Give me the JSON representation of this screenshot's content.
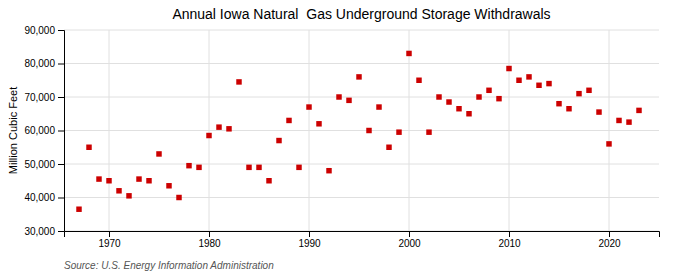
{
  "chart_data": {
    "type": "scatter",
    "title": "Annual Iowa Natural  Gas Underground Storage Withdrawals",
    "ylabel": "Million Cubic Feet",
    "annotation": "Source: U.S. Energy Information Administration",
    "x": [
      1967,
      1968,
      1969,
      1970,
      1971,
      1972,
      1973,
      1974,
      1975,
      1976,
      1977,
      1978,
      1979,
      1980,
      1981,
      1982,
      1983,
      1984,
      1985,
      1986,
      1987,
      1988,
      1989,
      1990,
      1991,
      1992,
      1993,
      1994,
      1995,
      1996,
      1997,
      1998,
      1999,
      2000,
      2001,
      2002,
      2003,
      2004,
      2005,
      2006,
      2007,
      2008,
      2009,
      2010,
      2011,
      2012,
      2013,
      2014,
      2015,
      2016,
      2017,
      2018,
      2019,
      2020,
      2021,
      2022,
      2023
    ],
    "values": [
      36500,
      55000,
      45500,
      45000,
      42000,
      40500,
      45500,
      45000,
      53000,
      43500,
      40000,
      49500,
      49000,
      58500,
      61000,
      60500,
      74500,
      49000,
      49000,
      45000,
      57000,
      63000,
      49000,
      67000,
      62000,
      48000,
      70000,
      69000,
      76000,
      60000,
      67000,
      55000,
      59500,
      83000,
      75000,
      59500,
      70000,
      68500,
      66500,
      65000,
      70000,
      72000,
      69500,
      78500,
      75000,
      76000,
      73500,
      74000,
      68000,
      66500,
      71000,
      72000,
      65500,
      56000,
      63000,
      62500,
      66000
    ],
    "color": "#cc0000",
    "marker": "square",
    "xlim": [
      1965.5,
      2025
    ],
    "xticks": [
      1970,
      1980,
      1990,
      2000,
      2010,
      2020
    ],
    "ylim": [
      30000,
      90000
    ],
    "yticks": [
      {
        "value": 30000,
        "label": "30,000"
      },
      {
        "value": 40000,
        "label": "40,000"
      },
      {
        "value": 50000,
        "label": "50,000"
      },
      {
        "value": 60000,
        "label": "60,000"
      },
      {
        "value": 70000,
        "label": "70,000"
      },
      {
        "value": 80000,
        "label": "80,000"
      },
      {
        "value": 90000,
        "label": "90,000"
      }
    ],
    "grid": true
  }
}
